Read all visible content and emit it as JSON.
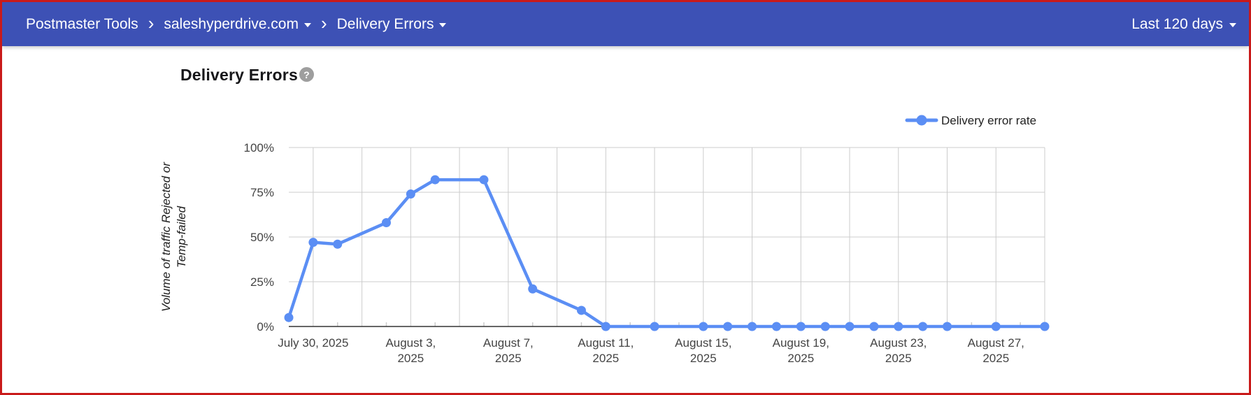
{
  "app_bar": {
    "breadcrumb": {
      "root": "Postmaster Tools",
      "separator": "›",
      "domain": "saleshyperdrive.com",
      "page": "Delivery Errors"
    },
    "date_range": "Last 120 days"
  },
  "main": {
    "title": "Delivery Errors",
    "help_glyph": "?"
  },
  "colors": {
    "app_bar_bg": "#3d51b5",
    "screenshot_border": "#c91a1a",
    "series_line": "#5b8ef4",
    "gridline": "#cccccc",
    "baseline": "#333333",
    "axis_text": "#444444",
    "help_icon_bg": "#9e9e9e"
  },
  "chart_data": {
    "type": "line",
    "title": "Delivery Errors",
    "ylabel": "Volume of traffic Rejected or Temp-failed",
    "ylabel_lines": [
      "Volume of traffic Rejected or",
      "Temp-failed"
    ],
    "legend": {
      "position": "top-right",
      "entries": [
        {
          "label": "Delivery error rate",
          "color": "#5b8ef4"
        }
      ]
    },
    "y_axis": {
      "min": 0,
      "max": 100,
      "tick_values": [
        0,
        25,
        50,
        75,
        100
      ],
      "tick_labels": [
        "0%",
        "25%",
        "50%",
        "75%",
        "100%"
      ],
      "grid": true
    },
    "x_axis": {
      "start_date": "July 29, 2025",
      "end_date": "August 29, 2025",
      "span_days": 31,
      "gridline_days": [
        1,
        3,
        5,
        7,
        9,
        11,
        13,
        15,
        17,
        19,
        21,
        23,
        25,
        27,
        29,
        31
      ],
      "minor_tick_days": [
        2,
        4,
        6,
        8,
        10,
        12,
        14,
        16,
        18,
        20,
        22,
        24,
        26,
        28,
        30
      ],
      "labels": [
        {
          "day": 1,
          "lines": [
            "July 30, 2025"
          ]
        },
        {
          "day": 5,
          "lines": [
            "August 3,",
            "2025"
          ]
        },
        {
          "day": 9,
          "lines": [
            "August 7,",
            "2025"
          ]
        },
        {
          "day": 13,
          "lines": [
            "August 11,",
            "2025"
          ]
        },
        {
          "day": 17,
          "lines": [
            "August 15,",
            "2025"
          ]
        },
        {
          "day": 21,
          "lines": [
            "August 19,",
            "2025"
          ]
        },
        {
          "day": 25,
          "lines": [
            "August 23,",
            "2025"
          ]
        },
        {
          "day": 29,
          "lines": [
            "August 27,",
            "2025"
          ]
        }
      ]
    },
    "series": [
      {
        "name": "Delivery error rate",
        "color": "#5b8ef4",
        "points": [
          {
            "date": "July 29, 2025",
            "day": 0,
            "value": 5
          },
          {
            "date": "July 30, 2025",
            "day": 1,
            "value": 47
          },
          {
            "date": "July 31, 2025",
            "day": 2,
            "value": 46
          },
          {
            "date": "August 2, 2025",
            "day": 4,
            "value": 58
          },
          {
            "date": "August 3, 2025",
            "day": 5,
            "value": 74
          },
          {
            "date": "August 4, 2025",
            "day": 6,
            "value": 82
          },
          {
            "date": "August 6, 2025",
            "day": 8,
            "value": 82
          },
          {
            "date": "August 8, 2025",
            "day": 10,
            "value": 21
          },
          {
            "date": "August 10, 2025",
            "day": 12,
            "value": 9
          },
          {
            "date": "August 11, 2025",
            "day": 13,
            "value": 0
          },
          {
            "date": "August 13, 2025",
            "day": 15,
            "value": 0
          },
          {
            "date": "August 15, 2025",
            "day": 17,
            "value": 0
          },
          {
            "date": "August 16, 2025",
            "day": 18,
            "value": 0
          },
          {
            "date": "August 17, 2025",
            "day": 19,
            "value": 0
          },
          {
            "date": "August 18, 2025",
            "day": 20,
            "value": 0
          },
          {
            "date": "August 19, 2025",
            "day": 21,
            "value": 0
          },
          {
            "date": "August 20, 2025",
            "day": 22,
            "value": 0
          },
          {
            "date": "August 21, 2025",
            "day": 23,
            "value": 0
          },
          {
            "date": "August 22, 2025",
            "day": 24,
            "value": 0
          },
          {
            "date": "August 23, 2025",
            "day": 25,
            "value": 0
          },
          {
            "date": "August 24, 2025",
            "day": 26,
            "value": 0
          },
          {
            "date": "August 25, 2025",
            "day": 27,
            "value": 0
          },
          {
            "date": "August 27, 2025",
            "day": 29,
            "value": 0
          },
          {
            "date": "August 29, 2025",
            "day": 31,
            "value": 0
          }
        ]
      }
    ]
  }
}
